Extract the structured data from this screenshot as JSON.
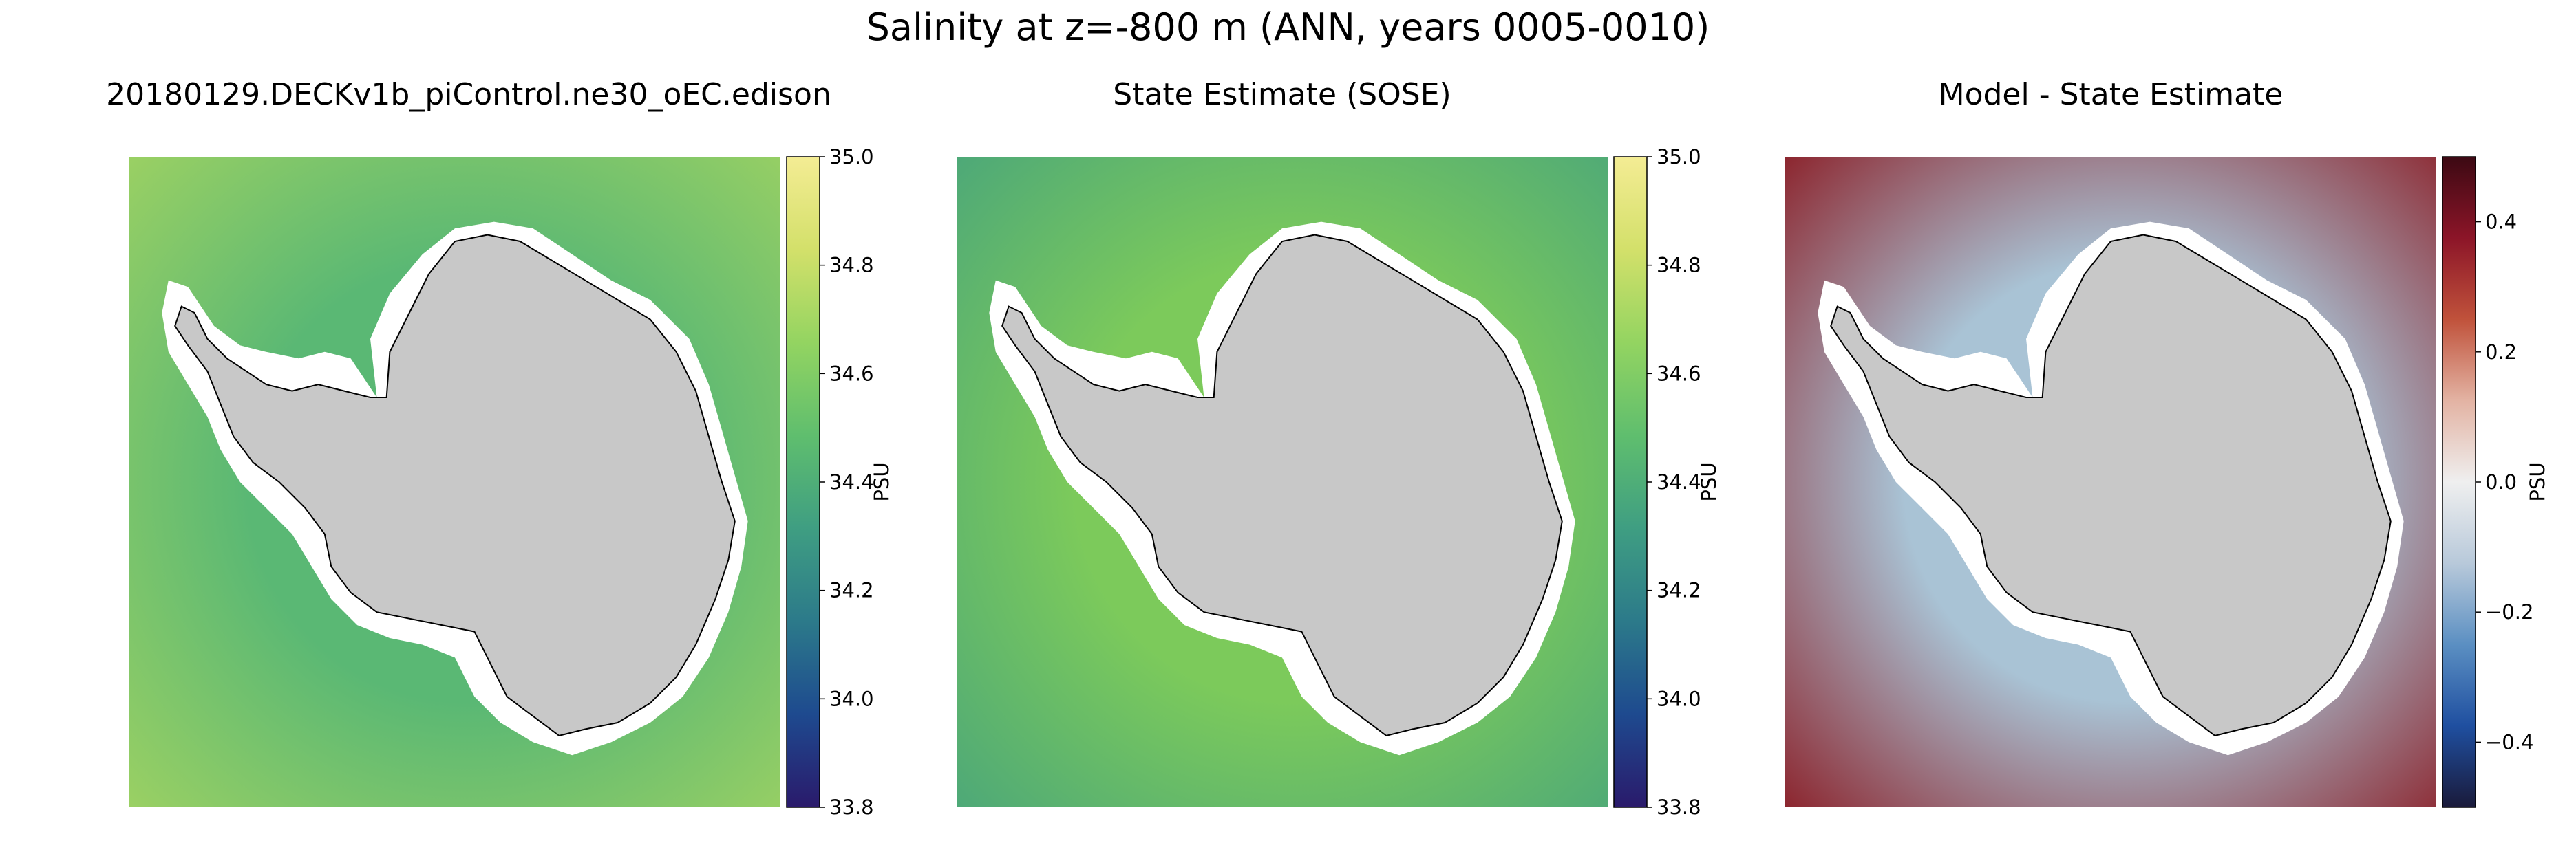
{
  "figure": {
    "suptitle": "Salinity at z=-800 m (ANN, years 0005-0010)"
  },
  "chart_data": [
    {
      "type": "heatmap",
      "title": "20180129.DECKv1b_piControl.ne30_oEC.edison",
      "colormap": "haline",
      "colorbar": {
        "label": "PSU",
        "range": [
          33.8,
          35.0
        ],
        "ticks": [
          "35.0",
          "34.8",
          "34.6",
          "34.4",
          "34.2",
          "34.0",
          "33.8"
        ],
        "tick_values": [
          35.0,
          34.8,
          34.6,
          34.4,
          34.2,
          34.0,
          33.8
        ],
        "colors": [
          "#2a1a6b",
          "#1e4a8f",
          "#2c7a8a",
          "#3f9e82",
          "#5fbe6e",
          "#93d461",
          "#d3e06a",
          "#f4ec94"
        ]
      },
      "ocean_color": "#5ab874",
      "outer_color": "#9fd262",
      "land_color": "#c8c8c8"
    },
    {
      "type": "heatmap",
      "title": "State Estimate (SOSE)",
      "colormap": "haline",
      "colorbar": {
        "label": "PSU",
        "range": [
          33.8,
          35.0
        ],
        "ticks": [
          "35.0",
          "34.8",
          "34.6",
          "34.4",
          "34.2",
          "34.0",
          "33.8"
        ],
        "tick_values": [
          35.0,
          34.8,
          34.6,
          34.4,
          34.2,
          34.0,
          33.8
        ],
        "colors": [
          "#2a1a6b",
          "#1e4a8f",
          "#2c7a8a",
          "#3f9e82",
          "#5fbe6e",
          "#93d461",
          "#d3e06a",
          "#f4ec94"
        ]
      },
      "ocean_color": "#7cca5b",
      "outer_color": "#4aa67a",
      "land_color": "#c8c8c8"
    },
    {
      "type": "heatmap",
      "title": "Model - State Estimate",
      "colormap": "balance",
      "colorbar": {
        "label": "PSU",
        "range": [
          -0.5,
          0.5
        ],
        "ticks": [
          "0.4",
          "0.2",
          "0.0",
          "−0.2",
          "−0.4"
        ],
        "tick_values": [
          0.4,
          0.2,
          0.0,
          -0.2,
          -0.4
        ],
        "colors": [
          "#1a1a3a",
          "#1f4fa0",
          "#5b8fc2",
          "#b8c9da",
          "#efefef",
          "#e3b3a3",
          "#c0523b",
          "#8c1528",
          "#3c0913"
        ]
      },
      "ocean_color": "#a9c3d5",
      "outer_color": "#8a1a22",
      "land_color": "#c8c8c8"
    }
  ]
}
